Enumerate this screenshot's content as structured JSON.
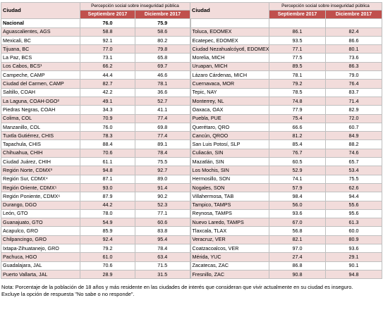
{
  "header": {
    "city": "Ciudad",
    "group": "Percepción social sobre inseguridad pública",
    "sep": "Septiembre 2017",
    "dic": "Diciembre 2017"
  },
  "left_rows": [
    [
      "Nacional",
      "76.0",
      "75.9"
    ],
    [
      "Aguascalientes, AGS",
      "58.8",
      "58.6"
    ],
    [
      "Mexicali, BC",
      "92.1",
      "80.2"
    ],
    [
      "Tijuana, BC",
      "77.0",
      "79.8"
    ],
    [
      "La Paz, BCS",
      "73.1",
      "65.8"
    ],
    [
      "Los Cabos, BCS¹",
      "66.2",
      "69.7"
    ],
    [
      "Campeche, CAMP",
      "44.4",
      "46.6"
    ],
    [
      "Ciudad del Carmen, CAMP",
      "82.7",
      "78.1"
    ],
    [
      "Saltillo, COAH",
      "42.2",
      "36.6"
    ],
    [
      "La Laguna, COAH-DGO²",
      "49.1",
      "52.7"
    ],
    [
      "Piedras Negras, COAH",
      "34.3",
      "41.1"
    ],
    [
      "Colima, COL",
      "70.9",
      "77.4"
    ],
    [
      "Manzanillo, COL",
      "76.0",
      "69.8"
    ],
    [
      "Tuxtla Gutiérrez, CHIS",
      "78.3",
      "77.4"
    ],
    [
      "Tapachula, CHIS",
      "88.4",
      "89.1"
    ],
    [
      "Chihuahua, CHIH",
      "70.6",
      "78.4"
    ],
    [
      "Ciudad Juárez, CHIH",
      "61.1",
      "75.5"
    ],
    [
      "Región Norte, CDMX³",
      "94.8",
      "92.7"
    ],
    [
      "Región Sur, CDMX⁴",
      "87.1",
      "89.0"
    ],
    [
      "Región Oriente, CDMX⁵",
      "93.0",
      "91.4"
    ],
    [
      "Región Poniente, CDMX⁶",
      "87.9",
      "90.2"
    ],
    [
      "Durango, DGO",
      "44.2",
      "52.3"
    ],
    [
      "León, GTO",
      "78.0",
      "77.1"
    ],
    [
      "Guanajuato, GTO",
      "54.9",
      "60.6"
    ],
    [
      "Acapulco, GRO",
      "85.9",
      "83.8"
    ],
    [
      "Chilpancingo, GRO",
      "92.4",
      "95.4"
    ],
    [
      "Ixtapa-Zihuatanejo, GRO",
      "79.2",
      "78.4"
    ],
    [
      "Pachuca, HGO",
      "61.0",
      "63.4"
    ],
    [
      "Guadalajara, JAL",
      "70.6",
      "71.5"
    ],
    [
      "Puerto Vallarta, JAL",
      "28.9",
      "31.5"
    ]
  ],
  "right_rows": [
    [
      "Toluca, EDOMEX",
      "86.1",
      "82.4"
    ],
    [
      "Ecatepec, EDOMEX",
      "93.5",
      "86.6"
    ],
    [
      "Ciudad Nezahualcóyotl, EDOMEX",
      "77.1",
      "80.1"
    ],
    [
      "Morelia, MICH",
      "77.5",
      "73.6"
    ],
    [
      "Uruapan, MICH",
      "89.5",
      "86.3"
    ],
    [
      "Lázaro Cárdenas, MICH",
      "78.1",
      "79.0"
    ],
    [
      "Cuernavaca, MOR",
      "79.2",
      "76.4"
    ],
    [
      "Tepic, NAY",
      "78.5",
      "83.7"
    ],
    [
      "Monterrey, NL",
      "74.8",
      "71.4"
    ],
    [
      "Oaxaca, OAX",
      "77.9",
      "82.9"
    ],
    [
      "Puebla, PUE",
      "75.4",
      "72.0"
    ],
    [
      "Querétaro, QRO",
      "66.6",
      "60.7"
    ],
    [
      "Cancún, QROO",
      "81.2",
      "84.9"
    ],
    [
      "San Luis Potosí, SLP",
      "85.4",
      "88.2"
    ],
    [
      "Culiacán, SIN",
      "76.7",
      "74.6"
    ],
    [
      "Mazatlán, SIN",
      "60.5",
      "65.7"
    ],
    [
      "Los Mochis, SIN",
      "52.9",
      "53.4"
    ],
    [
      "Hermosillo, SON",
      "74.1",
      "75.5"
    ],
    [
      "Nogales, SON",
      "57.9",
      "62.6"
    ],
    [
      "Villahermosa, TAB",
      "98.4",
      "94.4"
    ],
    [
      "Tampico, TAMPS",
      "56.0",
      "55.6"
    ],
    [
      "Reynosa, TAMPS",
      "93.6",
      "95.6"
    ],
    [
      "Nuevo Laredo, TAMPS",
      "67.0",
      "61.3"
    ],
    [
      "Tlaxcala, TLAX",
      "56.8",
      "60.0"
    ],
    [
      "Veracruz, VER",
      "82.1",
      "80.9"
    ],
    [
      "Coatzacoalcos, VER",
      "97.0",
      "93.6"
    ],
    [
      "Mérida, YUC",
      "27.4",
      "29.1"
    ],
    [
      "Zacatecas, ZAC",
      "86.8",
      "90.1"
    ],
    [
      "Fresnillo, ZAC",
      "90.8",
      "94.8"
    ]
  ],
  "notes": [
    "Nota: Porcentaje de la población de 18 años y más residente en las ciudades de interés que consideran que vivir actualmente en su ciudad es inseguro.",
    "Excluye la opción de respuesta \"No sabe o no responde\"."
  ]
}
